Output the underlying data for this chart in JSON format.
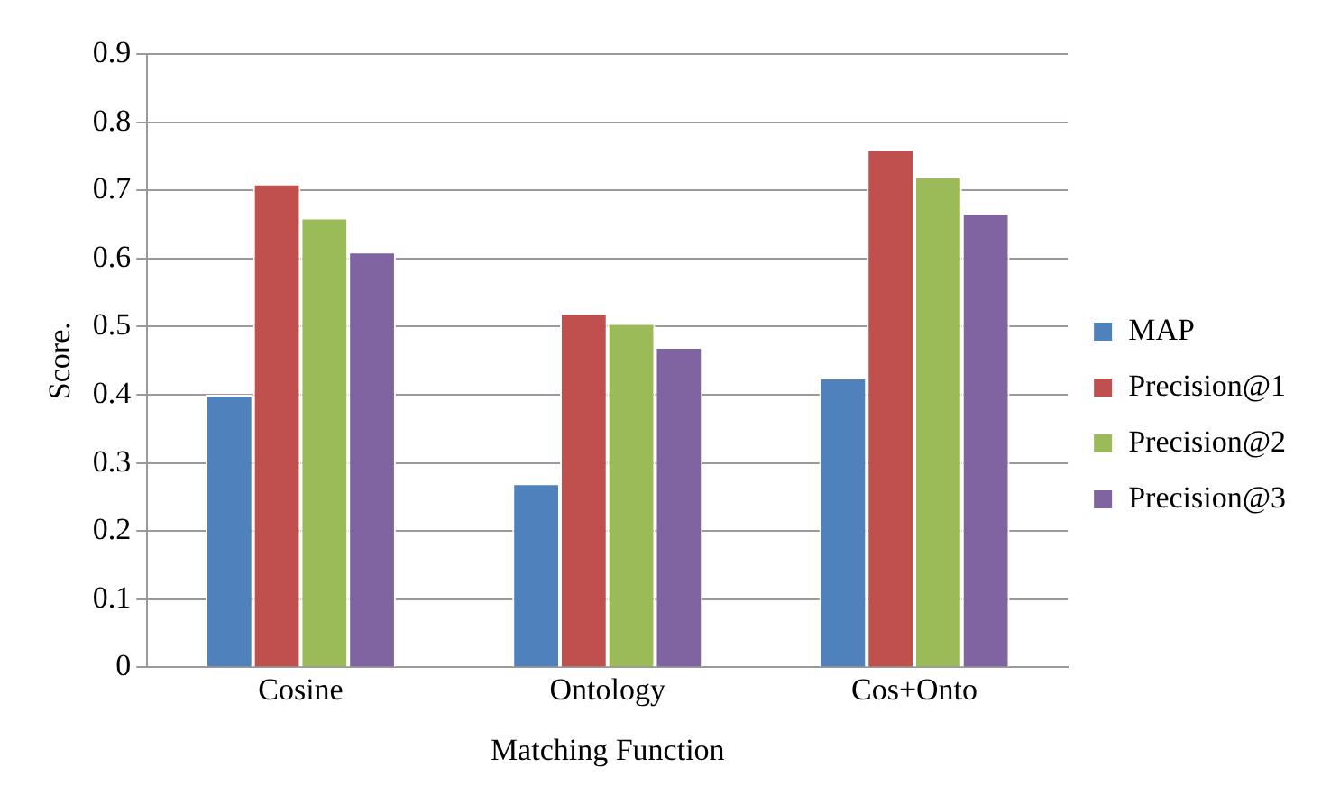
{
  "chart_data": {
    "type": "bar",
    "xlabel": "Matching Function",
    "ylabel": "Score.",
    "categories": [
      "Cosine",
      "Ontology",
      "Cos+Onto"
    ],
    "series": [
      {
        "name": "MAP",
        "color": "#4f81bd",
        "values": [
          0.4,
          0.27,
          0.425
        ]
      },
      {
        "name": "Precision@1",
        "color": "#c0504d",
        "values": [
          0.71,
          0.52,
          0.76
        ]
      },
      {
        "name": "Precision@2",
        "color": "#9bbb59",
        "values": [
          0.66,
          0.505,
          0.72
        ]
      },
      {
        "name": "Precision@3",
        "color": "#8064a2",
        "values": [
          0.61,
          0.47,
          0.667
        ]
      }
    ],
    "ylim": [
      0,
      0.9
    ],
    "yticks": [
      0,
      0.1,
      0.2,
      0.3,
      0.4,
      0.5,
      0.6,
      0.7,
      0.8,
      0.9
    ],
    "grid": "y",
    "legend": "right"
  }
}
